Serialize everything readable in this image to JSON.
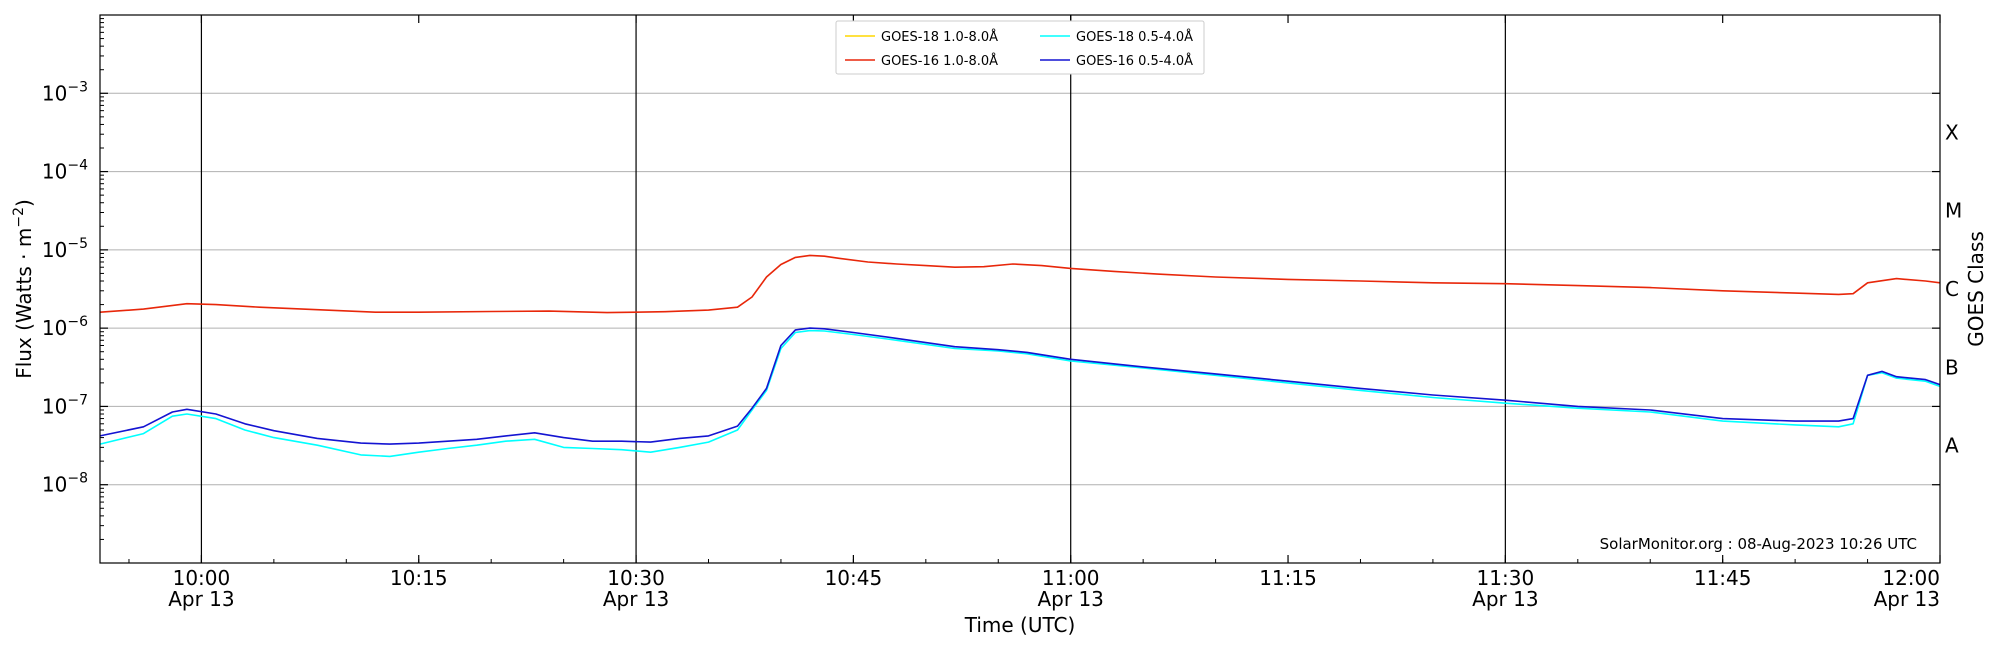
{
  "chart_data": {
    "type": "line",
    "xlabel": "Time (UTC)",
    "ylabel": "Flux (Watts · m",
    "ylabel_sup": "−2",
    "y2label": "GOES Class",
    "y_scale": "log",
    "ylim": [
      1e-09,
      0.01
    ],
    "xlim": [
      "09:53",
      "12:00"
    ],
    "grid": "horizontal",
    "legend_position": "top-center",
    "credit": "SolarMonitor.org : 08-Aug-2023 10:26 UTC",
    "x_ticks": [
      {
        "time": "10:00",
        "label": "10:00",
        "date": "Apr 13"
      },
      {
        "time": "10:15",
        "label": "10:15",
        "date": ""
      },
      {
        "time": "10:30",
        "label": "10:30",
        "date": "Apr 13"
      },
      {
        "time": "10:45",
        "label": "10:45",
        "date": ""
      },
      {
        "time": "11:00",
        "label": "11:00",
        "date": "Apr 13"
      },
      {
        "time": "11:15",
        "label": "11:15",
        "date": ""
      },
      {
        "time": "11:30",
        "label": "11:30",
        "date": "Apr 13"
      },
      {
        "time": "11:45",
        "label": "11:45",
        "date": ""
      },
      {
        "time": "12:00",
        "label": "12:00",
        "date": "Apr 13"
      }
    ],
    "y_ticks": [
      {
        "value": 1e-08,
        "base": "10",
        "exp": "−8"
      },
      {
        "value": 1e-07,
        "base": "10",
        "exp": "−7"
      },
      {
        "value": 1e-06,
        "base": "10",
        "exp": "−6"
      },
      {
        "value": 1e-05,
        "base": "10",
        "exp": "−5"
      },
      {
        "value": 0.0001,
        "base": "10",
        "exp": "−4"
      },
      {
        "value": 0.001,
        "base": "10",
        "exp": "−3"
      }
    ],
    "goes_classes": [
      {
        "label": "A",
        "value": 3.16e-08
      },
      {
        "label": "B",
        "value": 3.16e-07
      },
      {
        "label": "C",
        "value": 3.16e-06
      },
      {
        "label": "M",
        "value": 3.16e-05
      },
      {
        "label": "X",
        "value": 0.000316
      }
    ],
    "vertical_lines": [
      "10:00",
      "10:30",
      "11:00",
      "11:30"
    ],
    "series": [
      {
        "name": "GOES-18 1.0-8.0Å",
        "color": "#ffd700",
        "x": [],
        "y": []
      },
      {
        "name": "GOES-16 1.0-8.0Å",
        "color": "#e8270a",
        "x": [
          "09:53",
          "09:56",
          "09:59",
          "10:01",
          "10:04",
          "10:08",
          "10:12",
          "10:15",
          "10:20",
          "10:24",
          "10:28",
          "10:32",
          "10:35",
          "10:37",
          "10:38",
          "10:39",
          "10:40",
          "10:41",
          "10:42",
          "10:43",
          "10:44",
          "10:46",
          "10:48",
          "10:50",
          "10:52",
          "10:54",
          "10:56",
          "10:58",
          "11:00",
          "11:03",
          "11:06",
          "11:10",
          "11:15",
          "11:20",
          "11:25",
          "11:30",
          "11:35",
          "11:40",
          "11:45",
          "11:50",
          "11:53",
          "11:54",
          "11:55",
          "11:57",
          "11:59",
          "12:00"
        ],
        "y": [
          1.6e-06,
          1.75e-06,
          2.05e-06,
          2e-06,
          1.85e-06,
          1.72e-06,
          1.6e-06,
          1.6e-06,
          1.63e-06,
          1.65e-06,
          1.58e-06,
          1.62e-06,
          1.7e-06,
          1.85e-06,
          2.5e-06,
          4.5e-06,
          6.5e-06,
          8e-06,
          8.5e-06,
          8.3e-06,
          7.8e-06,
          7e-06,
          6.6e-06,
          6.3e-06,
          6e-06,
          6.1e-06,
          6.6e-06,
          6.3e-06,
          5.8e-06,
          5.3e-06,
          4.9e-06,
          4.5e-06,
          4.2e-06,
          4e-06,
          3.8e-06,
          3.7e-06,
          3.5e-06,
          3.3e-06,
          3e-06,
          2.8e-06,
          2.7e-06,
          2.75e-06,
          3.8e-06,
          4.3e-06,
          4e-06,
          3.8e-06
        ]
      },
      {
        "name": "GOES-18 0.5-4.0Å",
        "color": "#00ffff",
        "x": [
          "09:53",
          "09:56",
          "09:58",
          "09:59",
          "10:01",
          "10:03",
          "10:05",
          "10:08",
          "10:11",
          "10:13",
          "10:15",
          "10:17",
          "10:19",
          "10:21",
          "10:23",
          "10:25",
          "10:27",
          "10:29",
          "10:31",
          "10:33",
          "10:35",
          "10:37",
          "10:38",
          "10:39",
          "10:40",
          "10:41",
          "10:42",
          "10:43",
          "10:45",
          "10:48",
          "10:52",
          "10:55",
          "10:57",
          "11:00",
          "11:05",
          "11:10",
          "11:15",
          "11:20",
          "11:25",
          "11:30",
          "11:35",
          "11:40",
          "11:45",
          "11:50",
          "11:53",
          "11:54",
          "11:55",
          "11:56",
          "11:57",
          "11:59",
          "12:00"
        ],
        "y": [
          3.3e-08,
          4.5e-08,
          7.5e-08,
          8e-08,
          7e-08,
          5e-08,
          4e-08,
          3.2e-08,
          2.4e-08,
          2.3e-08,
          2.6e-08,
          2.9e-08,
          3.2e-08,
          3.6e-08,
          3.8e-08,
          3e-08,
          2.9e-08,
          2.8e-08,
          2.6e-08,
          3e-08,
          3.5e-08,
          5e-08,
          9e-08,
          1.6e-07,
          5.5e-07,
          8.8e-07,
          9.3e-07,
          9.2e-07,
          8.3e-07,
          7e-07,
          5.5e-07,
          5.1e-07,
          4.7e-07,
          3.8e-07,
          3.1e-07,
          2.5e-07,
          2e-07,
          1.6e-07,
          1.3e-07,
          1.1e-07,
          9.5e-08,
          8.5e-08,
          6.5e-08,
          5.8e-08,
          5.5e-08,
          6e-08,
          2.5e-07,
          2.7e-07,
          2.3e-07,
          2.1e-07,
          1.8e-07
        ]
      },
      {
        "name": "GOES-16 0.5-4.0Å",
        "color": "#1414d2",
        "x": [
          "09:53",
          "09:56",
          "09:58",
          "09:59",
          "10:01",
          "10:03",
          "10:05",
          "10:08",
          "10:11",
          "10:13",
          "10:15",
          "10:17",
          "10:19",
          "10:21",
          "10:23",
          "10:25",
          "10:27",
          "10:29",
          "10:31",
          "10:33",
          "10:35",
          "10:37",
          "10:38",
          "10:39",
          "10:40",
          "10:41",
          "10:42",
          "10:43",
          "10:45",
          "10:48",
          "10:52",
          "10:55",
          "10:57",
          "11:00",
          "11:05",
          "11:10",
          "11:15",
          "11:20",
          "11:25",
          "11:30",
          "11:35",
          "11:40",
          "11:45",
          "11:50",
          "11:53",
          "11:54",
          "11:55",
          "11:56",
          "11:57",
          "11:59",
          "12:00"
        ],
        "y": [
          4.2e-08,
          5.5e-08,
          8.5e-08,
          9.2e-08,
          8e-08,
          6e-08,
          4.9e-08,
          3.9e-08,
          3.4e-08,
          3.3e-08,
          3.4e-08,
          3.6e-08,
          3.8e-08,
          4.2e-08,
          4.6e-08,
          4e-08,
          3.6e-08,
          3.6e-08,
          3.5e-08,
          3.9e-08,
          4.2e-08,
          5.6e-08,
          9.5e-08,
          1.7e-07,
          6e-07,
          9.5e-07,
          1e-06,
          9.8e-07,
          8.8e-07,
          7.4e-07,
          5.8e-07,
          5.3e-07,
          4.9e-07,
          4e-07,
          3.2e-07,
          2.6e-07,
          2.1e-07,
          1.7e-07,
          1.4e-07,
          1.2e-07,
          1e-07,
          9e-08,
          7e-08,
          6.5e-08,
          6.5e-08,
          7e-08,
          2.5e-07,
          2.8e-07,
          2.4e-07,
          2.2e-07,
          1.9e-07
        ]
      }
    ]
  }
}
